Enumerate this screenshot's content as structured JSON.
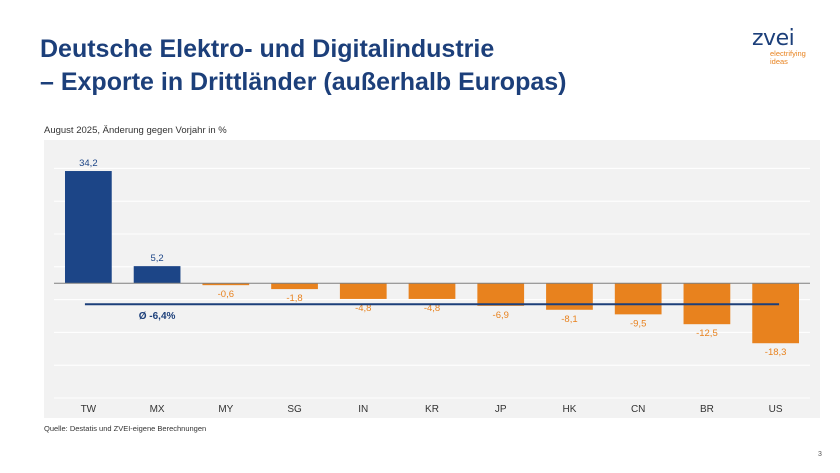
{
  "slide": {
    "title_line1": "Deutsche Elektro- und Digitalindustrie",
    "title_line2": "– Exporte in Drittländer (außerhalb Europas)",
    "page_number": "3"
  },
  "logo": {
    "name": "zvei",
    "tagline_line1": "electrifying",
    "tagline_line2": "ideas"
  },
  "chart_data": {
    "type": "bar",
    "subtitle": "August 2025, Änderung gegen Vorjahr in %",
    "categories": [
      "TW",
      "MX",
      "MY",
      "SG",
      "IN",
      "KR",
      "JP",
      "HK",
      "CN",
      "BR",
      "US"
    ],
    "values": [
      34.2,
      5.2,
      -0.6,
      -1.8,
      -4.8,
      -4.8,
      -6.9,
      -8.1,
      -9.5,
      -12.5,
      -18.3
    ],
    "value_labels": [
      "34,2",
      "5,2",
      "-0,6",
      "-1,8",
      "-4,8",
      "-4,8",
      "-6,9",
      "-8,1",
      "-9,5",
      "-12,5",
      "-18,3"
    ],
    "average": -6.4,
    "average_label": "Ø -6,4%",
    "ylim": [
      -35,
      40
    ],
    "grid": true,
    "source": "Quelle: Destatis und ZVEI-eigene Berechnungen",
    "colors": {
      "positive": "#1c4587",
      "negative": "#e8821e",
      "average_line": "#1c3f7a",
      "gridline": "#ffffff",
      "baseline": "#7f7f7f"
    }
  }
}
